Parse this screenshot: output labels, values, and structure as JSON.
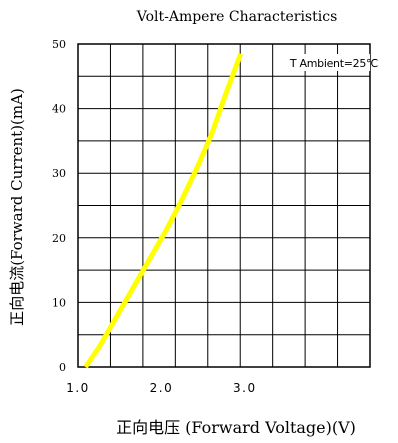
{
  "chart_data": {
    "type": "line",
    "title": "Volt-Ampere Characteristics",
    "xlabel": "正向电压 (Forward Voltage)(V)",
    "ylabel": "正向电流(Forward Current)(mA)",
    "annotation": "T Ambient=25℃",
    "xlim": [
      1.0,
      4.5
    ],
    "ylim": [
      0,
      50
    ],
    "x_ticks": [
      1.0,
      2.0,
      3.0
    ],
    "x_tick_labels": [
      "1.0",
      "2.0",
      "3.0"
    ],
    "y_ticks": [
      0,
      10,
      20,
      30,
      40,
      50
    ],
    "y_tick_labels": [
      "0",
      "10",
      "20",
      "30",
      "40",
      "50"
    ],
    "grid": true,
    "series": [
      {
        "color": "#ffff00",
        "x": [
          1.09,
          1.25,
          1.45,
          1.65,
          1.85,
          2.05,
          2.25,
          2.45,
          2.6,
          2.75,
          2.95
        ],
        "y": [
          0,
          3,
          7.5,
          12,
          16.5,
          21,
          26,
          31.5,
          36,
          41.5,
          48.5
        ]
      }
    ]
  }
}
